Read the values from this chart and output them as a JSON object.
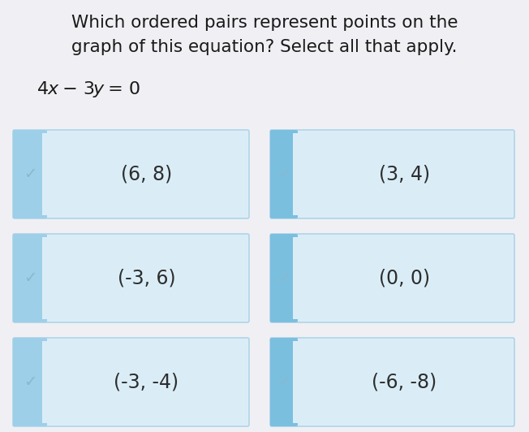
{
  "title_line1": "Which ordered pairs represent points on the",
  "title_line2": "graph of this equation? Select all that apply.",
  "equation_parts": [
    {
      "text": "4",
      "style": "normal"
    },
    {
      "text": "x",
      "style": "italic"
    },
    {
      "text": " − 3",
      "style": "normal"
    },
    {
      "text": "y",
      "style": "italic"
    },
    {
      "text": " = 0",
      "style": "normal"
    }
  ],
  "background_color": "#f0f0f4",
  "box_bg_color": "#daedf7",
  "box_border_color": "#b0d4e8",
  "box_stripe_color_left": "#9ecfe8",
  "box_stripe_color_right": "#7bbfdf",
  "check_color": "#8ab8cc",
  "text_color": "#2d2d2d",
  "title_color": "#1a1a1a",
  "items": [
    {
      "label": "(6, 8)",
      "row": 0,
      "col": 0
    },
    {
      "label": "(3, 4)",
      "row": 0,
      "col": 1
    },
    {
      "label": "(-3, 6)",
      "row": 1,
      "col": 0
    },
    {
      "label": "(0, 0)",
      "row": 1,
      "col": 1
    },
    {
      "label": "(-3, -4)",
      "row": 2,
      "col": 0
    },
    {
      "label": "(-6, -8)",
      "row": 2,
      "col": 1
    }
  ],
  "figsize": [
    6.52,
    5.32
  ],
  "dpi": 100
}
